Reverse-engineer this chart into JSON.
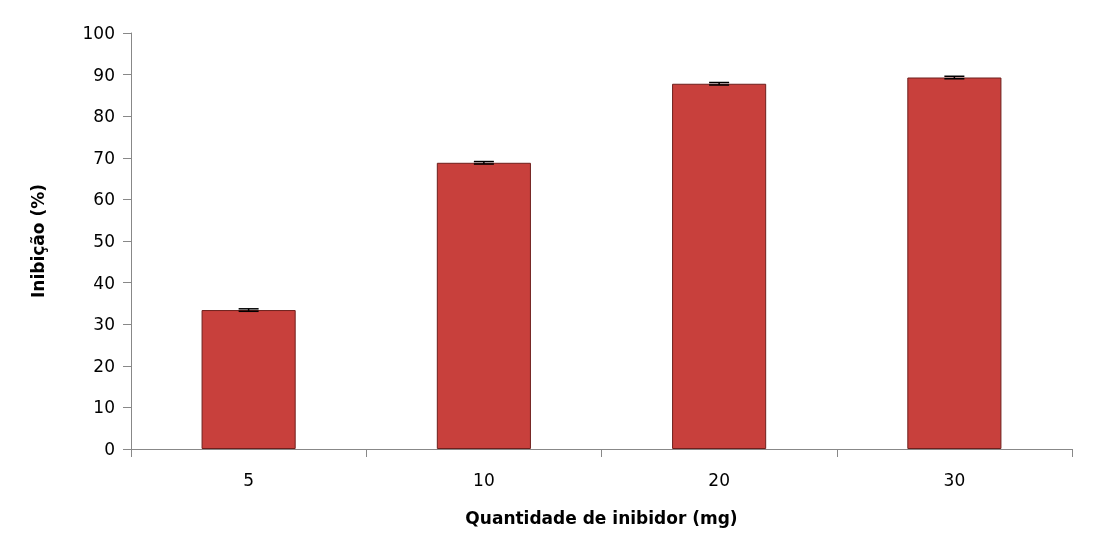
{
  "chart_data": {
    "type": "bar",
    "xlabel": "Quantidade de inibidor (mg)",
    "ylabel": "Inibição (%)",
    "categories": [
      "5",
      "10",
      "20",
      "30"
    ],
    "values": [
      33.4,
      68.8,
      87.8,
      89.3
    ],
    "errors": [
      0.3,
      0.3,
      0.3,
      0.3
    ],
    "color": "#c8403c",
    "ylim": [
      0,
      100
    ],
    "yticks": [
      0,
      10,
      20,
      30,
      40,
      50,
      60,
      70,
      80,
      90,
      100
    ],
    "grid": false
  }
}
